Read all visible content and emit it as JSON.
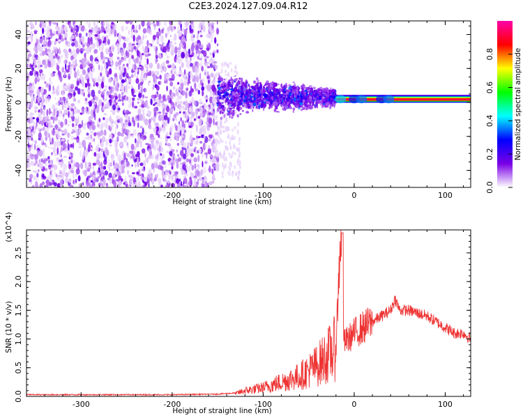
{
  "title": "C2E3.2024.127.09.04.R12",
  "chart_data": [
    {
      "type": "heatmap",
      "xlabel": "Height of straight line (km)",
      "ylabel": "Frequency (Hz)",
      "xlim": [
        -360,
        128
      ],
      "ylim": [
        -50,
        48
      ],
      "x_ticks": [
        -300,
        -200,
        -100,
        0,
        100
      ],
      "y_ticks": [
        -40,
        -20,
        0,
        20,
        40
      ],
      "grid": false,
      "colorbar": {
        "label": "Normalized spectral amplitude",
        "range": [
          0,
          1
        ],
        "ticks": [
          "0.0",
          "0.2",
          "0.4",
          "0.6",
          "0.8"
        ],
        "colors": [
          "#ffffff",
          "#7a00e6",
          "#0000ff",
          "#00ffff",
          "#00ff00",
          "#ffff00",
          "#ff0000",
          "#ff00aa"
        ]
      },
      "regions": [
        {
          "x_range": [
            -360,
            -150
          ],
          "freq_range": [
            -50,
            48
          ],
          "amplitude": 0.05
        },
        {
          "x_range": [
            -150,
            -20
          ],
          "freq_range": [
            -10,
            18
          ],
          "amplitude": 0.2
        },
        {
          "x_range": [
            -20,
            128
          ],
          "freq_range": [
            0,
            3
          ],
          "amplitude": 0.85
        }
      ]
    },
    {
      "type": "line",
      "xlabel": "Height of straight line (km)",
      "ylabel": "SNR (10 * v/v)",
      "y_multiplier": "(x10^4)",
      "xlim": [
        -360,
        128
      ],
      "ylim": [
        0,
        2.9
      ],
      "x_ticks": [
        -300,
        -200,
        -100,
        0,
        100
      ],
      "y_ticks": [
        "0.0",
        "0.5",
        "1.0",
        "1.5",
        "2.0",
        "2.5"
      ],
      "grid": false,
      "line_color": "#ee3333",
      "series": [
        {
          "x": [
            -360,
            -300,
            -200,
            -150,
            -130,
            -120,
            -100,
            -80,
            -60,
            -40,
            -30,
            -20,
            -15,
            -12,
            -10,
            0,
            10,
            20,
            30,
            40,
            45,
            50,
            60,
            70,
            80,
            90,
            100,
            110,
            120,
            128
          ],
          "values": [
            0.02,
            0.02,
            0.02,
            0.03,
            0.05,
            0.1,
            0.15,
            0.25,
            0.35,
            0.55,
            0.7,
            0.85,
            2.85,
            1.0,
            0.95,
            1.1,
            1.2,
            1.3,
            1.4,
            1.5,
            1.7,
            1.5,
            1.5,
            1.45,
            1.4,
            1.3,
            1.2,
            1.1,
            1.1,
            1.0
          ]
        }
      ]
    }
  ]
}
